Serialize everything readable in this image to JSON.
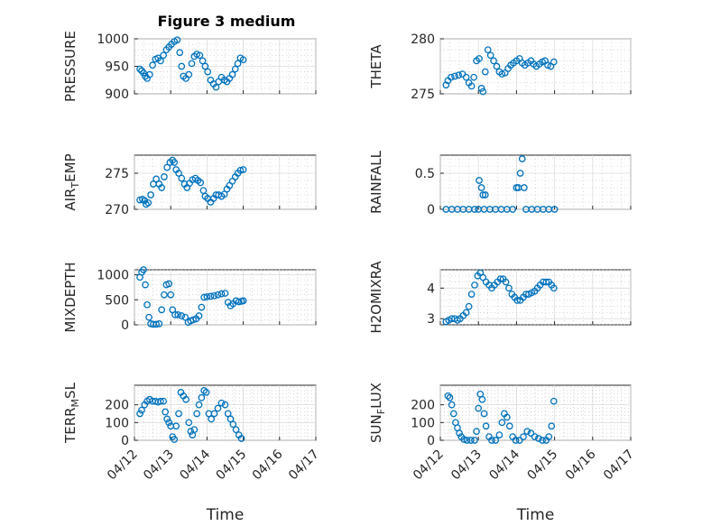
{
  "figure": {
    "title": "Figure 3 medium",
    "marker_color": "#0072BD"
  },
  "chart_data": [
    {
      "type": "scatter",
      "ylabel": "PRESSURE",
      "ylim": [
        900,
        1000
      ],
      "yticks": [
        900,
        950,
        1000
      ],
      "xlim": [
        0,
        5
      ],
      "xticks": [
        "04/12",
        "04/13",
        "04/14",
        "04/15",
        "04/16",
        "04/17"
      ],
      "show_xtick_labels": false,
      "grid": true,
      "points": [
        [
          0.15,
          945
        ],
        [
          0.2,
          942
        ],
        [
          0.25,
          938
        ],
        [
          0.3,
          932
        ],
        [
          0.35,
          928
        ],
        [
          0.42,
          935
        ],
        [
          0.5,
          952
        ],
        [
          0.58,
          963
        ],
        [
          0.65,
          965
        ],
        [
          0.72,
          960
        ],
        [
          0.8,
          970
        ],
        [
          0.88,
          980
        ],
        [
          0.95,
          985
        ],
        [
          1.02,
          990
        ],
        [
          1.1,
          995
        ],
        [
          1.18,
          998
        ],
        [
          1.25,
          975
        ],
        [
          1.3,
          950
        ],
        [
          1.35,
          932
        ],
        [
          1.42,
          928
        ],
        [
          1.5,
          935
        ],
        [
          1.58,
          955
        ],
        [
          1.65,
          968
        ],
        [
          1.72,
          972
        ],
        [
          1.8,
          970
        ],
        [
          1.88,
          960
        ],
        [
          1.95,
          950
        ],
        [
          2.02,
          940
        ],
        [
          2.1,
          925
        ],
        [
          2.18,
          918
        ],
        [
          2.25,
          912
        ],
        [
          2.32,
          922
        ],
        [
          2.4,
          930
        ],
        [
          2.48,
          925
        ],
        [
          2.55,
          922
        ],
        [
          2.62,
          928
        ],
        [
          2.7,
          935
        ],
        [
          2.78,
          945
        ],
        [
          2.85,
          955
        ],
        [
          2.92,
          965
        ],
        [
          3.0,
          962
        ]
      ]
    },
    {
      "type": "scatter",
      "ylabel": "THETA",
      "ylim": [
        275,
        280
      ],
      "yticks": [
        275,
        280
      ],
      "xlim": [
        0,
        5
      ],
      "xticks": [
        "04/12",
        "04/13",
        "04/14",
        "04/15",
        "04/16",
        "04/17"
      ],
      "show_xtick_labels": false,
      "grid": true,
      "points": [
        [
          0.15,
          275.8
        ],
        [
          0.2,
          276.2
        ],
        [
          0.28,
          276.5
        ],
        [
          0.38,
          276.6
        ],
        [
          0.48,
          276.7
        ],
        [
          0.58,
          276.8
        ],
        [
          0.68,
          276.5
        ],
        [
          0.75,
          276.0
        ],
        [
          0.82,
          275.7
        ],
        [
          0.88,
          276.5
        ],
        [
          0.95,
          278.0
        ],
        [
          1.02,
          278.2
        ],
        [
          1.08,
          275.5
        ],
        [
          1.12,
          275.2
        ],
        [
          1.18,
          277.0
        ],
        [
          1.25,
          279.0
        ],
        [
          1.32,
          278.5
        ],
        [
          1.4,
          278.0
        ],
        [
          1.48,
          277.5
        ],
        [
          1.55,
          277.0
        ],
        [
          1.62,
          276.8
        ],
        [
          1.7,
          276.9
        ],
        [
          1.78,
          277.3
        ],
        [
          1.85,
          277.6
        ],
        [
          1.92,
          277.8
        ],
        [
          2.0,
          278.0
        ],
        [
          2.08,
          278.2
        ],
        [
          2.15,
          277.8
        ],
        [
          2.22,
          277.6
        ],
        [
          2.3,
          277.8
        ],
        [
          2.38,
          278.0
        ],
        [
          2.45,
          277.7
        ],
        [
          2.52,
          277.5
        ],
        [
          2.6,
          277.7
        ],
        [
          2.68,
          277.9
        ],
        [
          2.75,
          278.0
        ],
        [
          2.82,
          277.6
        ],
        [
          2.9,
          277.5
        ],
        [
          2.98,
          277.9
        ]
      ]
    },
    {
      "type": "scatter",
      "ylabel": "AIR_TEMP",
      "ylim": [
        270,
        277.5
      ],
      "yticks": [
        270,
        275
      ],
      "xlim": [
        0,
        5
      ],
      "xticks": [
        "04/12",
        "04/13",
        "04/14",
        "04/15",
        "04/16",
        "04/17"
      ],
      "show_xtick_labels": false,
      "grid": true,
      "points": [
        [
          0.15,
          271.3
        ],
        [
          0.22,
          271.4
        ],
        [
          0.28,
          271.2
        ],
        [
          0.32,
          270.7
        ],
        [
          0.38,
          270.9
        ],
        [
          0.45,
          272.0
        ],
        [
          0.52,
          273.5
        ],
        [
          0.6,
          274.2
        ],
        [
          0.68,
          273.5
        ],
        [
          0.75,
          273.0
        ],
        [
          0.82,
          274.5
        ],
        [
          0.9,
          275.8
        ],
        [
          0.98,
          276.5
        ],
        [
          1.05,
          276.8
        ],
        [
          1.1,
          276.5
        ],
        [
          1.15,
          275.5
        ],
        [
          1.22,
          275.0
        ],
        [
          1.3,
          274.3
        ],
        [
          1.38,
          273.5
        ],
        [
          1.45,
          273.0
        ],
        [
          1.52,
          273.6
        ],
        [
          1.6,
          274.1
        ],
        [
          1.68,
          274.3
        ],
        [
          1.75,
          274.0
        ],
        [
          1.82,
          273.7
        ],
        [
          1.9,
          272.6
        ],
        [
          1.95,
          271.8
        ],
        [
          2.02,
          271.5
        ],
        [
          2.1,
          271.0
        ],
        [
          2.18,
          271.5
        ],
        [
          2.25,
          272.0
        ],
        [
          2.32,
          272.0
        ],
        [
          2.4,
          271.8
        ],
        [
          2.48,
          272.1
        ],
        [
          2.55,
          272.8
        ],
        [
          2.62,
          273.3
        ],
        [
          2.7,
          273.9
        ],
        [
          2.78,
          274.5
        ],
        [
          2.85,
          275.0
        ],
        [
          2.92,
          275.4
        ],
        [
          3.0,
          275.5
        ]
      ]
    },
    {
      "type": "scatter",
      "ylabel": "RAINFALL",
      "ylim": [
        0,
        0.75
      ],
      "yticks": [
        0,
        0.5
      ],
      "xlim": [
        0,
        5
      ],
      "xticks": [
        "04/12",
        "04/13",
        "04/14",
        "04/15",
        "04/16",
        "04/17"
      ],
      "show_xtick_labels": false,
      "grid": true,
      "points": [
        [
          0.15,
          0
        ],
        [
          0.3,
          0
        ],
        [
          0.45,
          0
        ],
        [
          0.6,
          0
        ],
        [
          0.75,
          0
        ],
        [
          0.9,
          0
        ],
        [
          1.0,
          0
        ],
        [
          1.02,
          0.4
        ],
        [
          1.08,
          0.3
        ],
        [
          1.12,
          0.2
        ],
        [
          1.18,
          0.2
        ],
        [
          1.15,
          0
        ],
        [
          1.3,
          0
        ],
        [
          1.45,
          0
        ],
        [
          1.6,
          0
        ],
        [
          1.75,
          0
        ],
        [
          1.9,
          0
        ],
        [
          2.0,
          0.3
        ],
        [
          2.05,
          0.3
        ],
        [
          2.1,
          0.5
        ],
        [
          2.15,
          0.7
        ],
        [
          2.2,
          0.3
        ],
        [
          2.25,
          0
        ],
        [
          2.4,
          0
        ],
        [
          2.55,
          0
        ],
        [
          2.7,
          0
        ],
        [
          2.85,
          0
        ],
        [
          3.0,
          0
        ]
      ]
    },
    {
      "type": "scatter",
      "ylabel": "MIXDEPTH",
      "ylim": [
        0,
        1100
      ],
      "yticks": [
        0,
        500,
        1000
      ],
      "xlim": [
        0,
        5
      ],
      "xticks": [
        "04/12",
        "04/13",
        "04/14",
        "04/15",
        "04/16",
        "04/17"
      ],
      "show_xtick_labels": false,
      "grid": true,
      "points": [
        [
          0.15,
          950
        ],
        [
          0.2,
          1050
        ],
        [
          0.25,
          1100
        ],
        [
          0.3,
          800
        ],
        [
          0.35,
          400
        ],
        [
          0.4,
          150
        ],
        [
          0.45,
          20
        ],
        [
          0.52,
          10
        ],
        [
          0.6,
          10
        ],
        [
          0.68,
          20
        ],
        [
          0.75,
          300
        ],
        [
          0.82,
          600
        ],
        [
          0.88,
          800
        ],
        [
          0.95,
          820
        ],
        [
          1.0,
          600
        ],
        [
          1.05,
          300
        ],
        [
          1.12,
          200
        ],
        [
          1.2,
          200
        ],
        [
          1.3,
          180
        ],
        [
          1.4,
          150
        ],
        [
          1.48,
          50
        ],
        [
          1.55,
          80
        ],
        [
          1.62,
          100
        ],
        [
          1.7,
          120
        ],
        [
          1.78,
          180
        ],
        [
          1.85,
          350
        ],
        [
          1.92,
          550
        ],
        [
          2.0,
          560
        ],
        [
          2.1,
          570
        ],
        [
          2.2,
          580
        ],
        [
          2.3,
          600
        ],
        [
          2.4,
          620
        ],
        [
          2.5,
          630
        ],
        [
          2.58,
          450
        ],
        [
          2.65,
          380
        ],
        [
          2.72,
          420
        ],
        [
          2.8,
          480
        ],
        [
          2.88,
          460
        ],
        [
          2.95,
          470
        ],
        [
          3.0,
          480
        ]
      ]
    },
    {
      "type": "scatter",
      "ylabel": "H2OMIXRA",
      "ylim": [
        2.8,
        4.6
      ],
      "yticks": [
        3,
        4
      ],
      "xlim": [
        0,
        5
      ],
      "xticks": [
        "04/12",
        "04/13",
        "04/14",
        "04/15",
        "04/16",
        "04/17"
      ],
      "show_xtick_labels": false,
      "grid": true,
      "points": [
        [
          0.15,
          2.9
        ],
        [
          0.22,
          2.95
        ],
        [
          0.3,
          3.0
        ],
        [
          0.38,
          3.0
        ],
        [
          0.45,
          2.95
        ],
        [
          0.52,
          3.0
        ],
        [
          0.6,
          3.1
        ],
        [
          0.68,
          3.2
        ],
        [
          0.75,
          3.4
        ],
        [
          0.82,
          3.8
        ],
        [
          0.9,
          4.1
        ],
        [
          0.98,
          4.4
        ],
        [
          1.05,
          4.5
        ],
        [
          1.12,
          4.35
        ],
        [
          1.2,
          4.2
        ],
        [
          1.28,
          4.1
        ],
        [
          1.35,
          4.0
        ],
        [
          1.42,
          4.1
        ],
        [
          1.5,
          4.2
        ],
        [
          1.58,
          4.3
        ],
        [
          1.65,
          4.3
        ],
        [
          1.72,
          4.2
        ],
        [
          1.8,
          4.0
        ],
        [
          1.88,
          3.8
        ],
        [
          1.95,
          3.7
        ],
        [
          2.02,
          3.6
        ],
        [
          2.1,
          3.6
        ],
        [
          2.18,
          3.7
        ],
        [
          2.25,
          3.8
        ],
        [
          2.32,
          3.8
        ],
        [
          2.4,
          3.85
        ],
        [
          2.48,
          3.9
        ],
        [
          2.55,
          4.0
        ],
        [
          2.62,
          4.1
        ],
        [
          2.7,
          4.2
        ],
        [
          2.78,
          4.2
        ],
        [
          2.85,
          4.2
        ],
        [
          2.92,
          4.1
        ],
        [
          2.98,
          4.0
        ]
      ]
    },
    {
      "type": "scatter",
      "ylabel": "TERR_MSL",
      "ylim": [
        0,
        310
      ],
      "yticks": [
        0,
        100,
        200
      ],
      "xlim": [
        0,
        5
      ],
      "xticks": [
        "04/12",
        "04/13",
        "04/14",
        "04/15",
        "04/16",
        "04/17"
      ],
      "show_xtick_labels": true,
      "xlabel": "Time",
      "grid": true,
      "points": [
        [
          0.15,
          150
        ],
        [
          0.2,
          170
        ],
        [
          0.28,
          200
        ],
        [
          0.35,
          220
        ],
        [
          0.42,
          230
        ],
        [
          0.5,
          220
        ],
        [
          0.58,
          220
        ],
        [
          0.65,
          215
        ],
        [
          0.72,
          220
        ],
        [
          0.8,
          220
        ],
        [
          0.85,
          160
        ],
        [
          0.9,
          120
        ],
        [
          0.95,
          100
        ],
        [
          1.0,
          80
        ],
        [
          1.05,
          20
        ],
        [
          1.1,
          5
        ],
        [
          1.15,
          80
        ],
        [
          1.22,
          150
        ],
        [
          1.28,
          270
        ],
        [
          1.35,
          250
        ],
        [
          1.42,
          230
        ],
        [
          1.5,
          100
        ],
        [
          1.55,
          50
        ],
        [
          1.6,
          30
        ],
        [
          1.65,
          60
        ],
        [
          1.72,
          150
        ],
        [
          1.78,
          200
        ],
        [
          1.85,
          240
        ],
        [
          1.92,
          280
        ],
        [
          1.98,
          270
        ],
        [
          2.05,
          150
        ],
        [
          2.12,
          120
        ],
        [
          2.2,
          150
        ],
        [
          2.3,
          180
        ],
        [
          2.4,
          210
        ],
        [
          2.5,
          200
        ],
        [
          2.58,
          150
        ],
        [
          2.65,
          120
        ],
        [
          2.72,
          90
        ],
        [
          2.8,
          60
        ],
        [
          2.88,
          30
        ],
        [
          2.95,
          10
        ]
      ]
    },
    {
      "type": "scatter",
      "ylabel": "SUN_FLUX",
      "ylim": [
        0,
        310
      ],
      "yticks": [
        0,
        100,
        200
      ],
      "xlim": [
        0,
        5
      ],
      "xticks": [
        "04/12",
        "04/13",
        "04/14",
        "04/15",
        "04/16",
        "04/17"
      ],
      "show_xtick_labels": true,
      "xlabel": "Time",
      "grid": true,
      "points": [
        [
          0.2,
          250
        ],
        [
          0.25,
          240
        ],
        [
          0.3,
          200
        ],
        [
          0.35,
          150
        ],
        [
          0.4,
          100
        ],
        [
          0.45,
          70
        ],
        [
          0.5,
          40
        ],
        [
          0.55,
          20
        ],
        [
          0.62,
          5
        ],
        [
          0.7,
          0
        ],
        [
          0.8,
          0
        ],
        [
          0.9,
          0
        ],
        [
          0.95,
          50
        ],
        [
          1.0,
          180
        ],
        [
          1.05,
          260
        ],
        [
          1.1,
          230
        ],
        [
          1.15,
          150
        ],
        [
          1.2,
          80
        ],
        [
          1.28,
          20
        ],
        [
          1.35,
          0
        ],
        [
          1.45,
          0
        ],
        [
          1.55,
          30
        ],
        [
          1.62,
          100
        ],
        [
          1.68,
          150
        ],
        [
          1.75,
          130
        ],
        [
          1.82,
          80
        ],
        [
          1.9,
          20
        ],
        [
          1.98,
          0
        ],
        [
          2.08,
          0
        ],
        [
          2.18,
          20
        ],
        [
          2.28,
          50
        ],
        [
          2.38,
          40
        ],
        [
          2.48,
          20
        ],
        [
          2.58,
          10
        ],
        [
          2.68,
          0
        ],
        [
          2.78,
          0
        ],
        [
          2.85,
          20
        ],
        [
          2.92,
          80
        ],
        [
          2.98,
          220
        ]
      ]
    }
  ]
}
